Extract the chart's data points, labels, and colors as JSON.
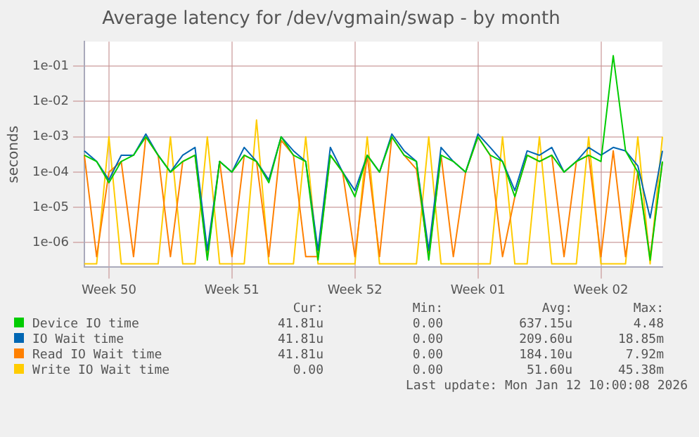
{
  "chart_data": {
    "type": "line",
    "title": "Average latency for /dev/vgmain/swap - by month",
    "ylabel": "seconds",
    "categories": [
      null,
      null,
      "Week 50",
      null,
      null,
      null,
      null,
      null,
      null,
      null,
      null,
      null,
      "Week 51",
      null,
      null,
      null,
      null,
      null,
      null,
      null,
      null,
      null,
      "Week 52",
      null,
      null,
      null,
      null,
      null,
      null,
      null,
      null,
      null,
      "Week 01",
      null,
      null,
      null,
      null,
      null,
      null,
      null,
      null,
      null,
      "Week 02",
      null,
      null,
      null,
      null,
      null
    ],
    "ylim": [
      2e-07,
      0.5
    ],
    "yticks": [
      {
        "value": 1e-06,
        "label": "1e-06"
      },
      {
        "value": 1e-05,
        "label": "1e-05"
      },
      {
        "value": 0.0001,
        "label": "1e-04"
      },
      {
        "value": 0.001,
        "label": "1e-03"
      },
      {
        "value": 0.01,
        "label": "1e-02"
      },
      {
        "value": 0.1,
        "label": "1e-01"
      }
    ],
    "log": "y",
    "grid": true,
    "legend": "bottom",
    "series": [
      {
        "name": "Device IO time",
        "color": "#00cc00",
        "values": [
          0.0003,
          0.0002,
          5e-05,
          0.0002,
          0.0003,
          0.001,
          0.0003,
          0.0001,
          0.0002,
          0.0003,
          3.2e-07,
          0.0002,
          0.0001,
          0.0003,
          0.0002,
          5e-05,
          0.001,
          0.0003,
          0.0002,
          3.2e-07,
          0.0003,
          0.0001,
          2e-05,
          0.0003,
          0.0001,
          0.001,
          0.0003,
          0.0002,
          3.2e-07,
          0.0003,
          0.0002,
          0.0001,
          0.001,
          0.0003,
          0.0002,
          2e-05,
          0.0003,
          0.0002,
          0.0003,
          0.0001,
          0.0002,
          0.0003,
          0.0002,
          0.2,
          0.0004,
          0.0001,
          3.2e-07,
          0.0002
        ]
      },
      {
        "name": "IO Wait time",
        "color": "#0066b3",
        "values": [
          0.0004,
          0.0002,
          6e-05,
          0.0003,
          0.0003,
          0.0012,
          0.0003,
          0.0001,
          0.0003,
          0.0005,
          6e-07,
          0.0002,
          0.0001,
          0.0005,
          0.0002,
          6e-05,
          0.001,
          0.0004,
          0.0002,
          6e-07,
          0.0005,
          0.0001,
          3e-05,
          0.0003,
          0.0001,
          0.0012,
          0.0004,
          0.0002,
          6e-07,
          0.0005,
          0.0002,
          0.0001,
          0.0012,
          0.0005,
          0.0002,
          3e-05,
          0.0004,
          0.0003,
          0.0005,
          0.0001,
          0.0002,
          0.0005,
          0.0003,
          0.0005,
          0.0004,
          0.00015,
          5e-06,
          0.0004
        ]
      },
      {
        "name": "Read IO Wait time",
        "color": "#ff8000",
        "values": [
          0.0003,
          4e-07,
          0.0001,
          0.0002,
          4e-07,
          0.001,
          0.0003,
          4e-07,
          0.0002,
          0.0003,
          4e-07,
          0.0002,
          4e-07,
          0.0003,
          0.0002,
          4e-07,
          0.0008,
          0.0003,
          4e-07,
          4e-07,
          0.0003,
          0.0001,
          4e-07,
          0.0003,
          4e-07,
          0.001,
          0.0003,
          0.00012,
          4e-07,
          0.0003,
          4e-07,
          0.0001,
          0.001,
          0.0003,
          4e-07,
          2e-05,
          0.0003,
          0.0002,
          0.0003,
          4e-07,
          0.0002,
          0.0003,
          4e-07,
          0.0004,
          4e-07,
          0.0001,
          4e-07,
          0.0002
        ]
      },
      {
        "name": "Write IO Wait time",
        "color": "#ffcc00",
        "values": [
          2.5e-07,
          2.5e-07,
          0.001,
          2.5e-07,
          2.5e-07,
          2.5e-07,
          2.5e-07,
          0.001,
          2.5e-07,
          2.5e-07,
          0.001,
          2.5e-07,
          2.5e-07,
          2.5e-07,
          0.003,
          2.5e-07,
          2.5e-07,
          2.5e-07,
          0.001,
          2.5e-07,
          2.5e-07,
          2.5e-07,
          2.5e-07,
          0.001,
          2.5e-07,
          2.5e-07,
          2.5e-07,
          2.5e-07,
          0.001,
          2.5e-07,
          2.5e-07,
          2.5e-07,
          2.5e-07,
          2.5e-07,
          0.001,
          2.5e-07,
          2.5e-07,
          0.001,
          2.5e-07,
          2.5e-07,
          2.5e-07,
          0.001,
          2.5e-07,
          2.5e-07,
          2.5e-07,
          0.001,
          2.5e-07,
          0.001
        ]
      }
    ],
    "annotations": [
      "Cur:",
      "Min:",
      "Avg:",
      "Max:",
      "41.81u",
      "0.00",
      "637.15u",
      "4.48",
      "41.81u",
      "0.00",
      "209.60u",
      "18.85m",
      "41.81u",
      "0.00",
      "184.10u",
      "7.92m",
      "0.00",
      "0.00",
      "51.60u",
      "45.38m",
      "Last update: Mon Jan 12 10:00:08 2026"
    ]
  }
}
